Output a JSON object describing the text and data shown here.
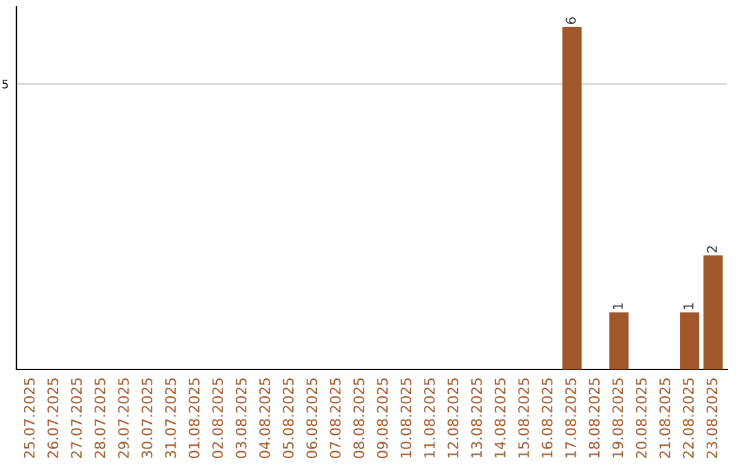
{
  "chart_data": {
    "type": "bar",
    "categories": [
      "25.07.2025",
      "26.07.2025",
      "27.07.2025",
      "28.07.2025",
      "29.07.2025",
      "30.07.2025",
      "31.07.2025",
      "01.08.2025",
      "02.08.2025",
      "03.08.2025",
      "04.08.2025",
      "05.08.2025",
      "06.08.2025",
      "07.08.2025",
      "08.08.2025",
      "09.08.2025",
      "10.08.2025",
      "11.08.2025",
      "12.08.2025",
      "13.08.2025",
      "14.08.2025",
      "15.08.2025",
      "16.08.2025",
      "17.08.2025",
      "18.08.2025",
      "19.08.2025",
      "20.08.2025",
      "21.08.2025",
      "22.08.2025",
      "23.08.2025"
    ],
    "values": [
      null,
      null,
      null,
      null,
      null,
      null,
      null,
      null,
      null,
      null,
      null,
      null,
      null,
      null,
      null,
      null,
      null,
      null,
      null,
      null,
      null,
      null,
      null,
      6,
      null,
      1,
      null,
      null,
      1,
      2
    ],
    "value_labels": [
      null,
      null,
      null,
      null,
      null,
      null,
      null,
      null,
      null,
      null,
      null,
      null,
      null,
      null,
      null,
      null,
      null,
      null,
      null,
      null,
      null,
      null,
      null,
      "6",
      null,
      "1",
      null,
      null,
      "1",
      "2"
    ],
    "color": "#a0572a",
    "ylim": [
      0,
      6.35
    ],
    "yticks": [
      5
    ],
    "grid": "y"
  }
}
